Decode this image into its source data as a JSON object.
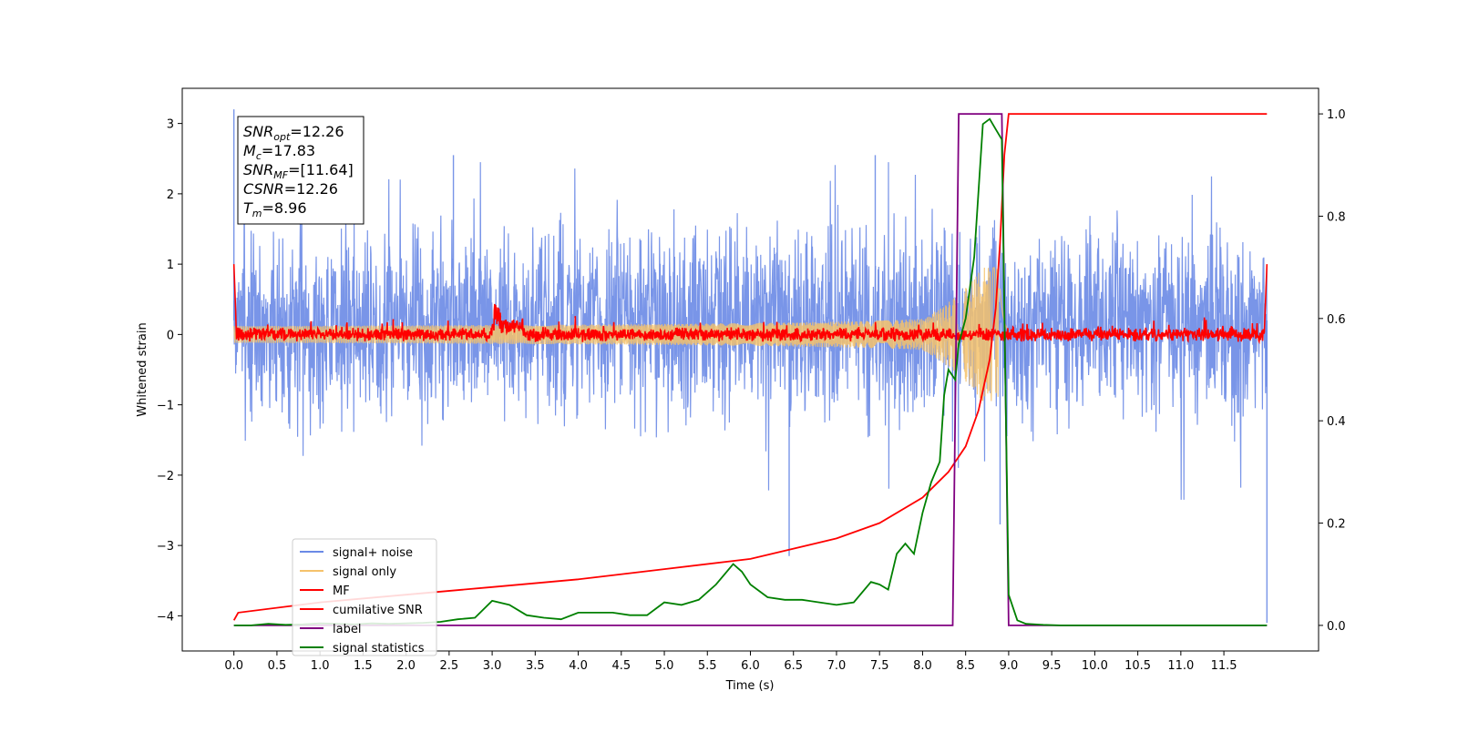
{
  "chart_data": {
    "type": "line",
    "title": "",
    "xlabel": "Time (s)",
    "ylabel": "Whitened strain",
    "y2label": "",
    "xlim": [
      -0.6,
      12.6
    ],
    "ylim": [
      -4.5,
      3.5
    ],
    "y2lim": [
      -0.05,
      1.05
    ],
    "xticks": [
      "0.0",
      "0.5",
      "1.0",
      "1.5",
      "2.0",
      "2.5",
      "3.0",
      "3.5",
      "4.0",
      "4.5",
      "5.0",
      "5.5",
      "6.0",
      "6.5",
      "7.0",
      "7.5",
      "8.0",
      "8.5",
      "9.0",
      "9.5",
      "10.0",
      "10.5",
      "11.0",
      "11.5"
    ],
    "yticks": [
      3,
      2,
      1,
      0,
      -1,
      -2,
      -3,
      -4
    ],
    "ytick_labels": [
      "3",
      "2",
      "1",
      "0",
      "−1",
      "−2",
      "−3",
      "−4"
    ],
    "y2ticks": [
      1.0,
      0.8,
      0.6,
      0.4,
      0.2,
      0.0
    ],
    "y2tick_labels": [
      "1.0",
      "0.8",
      "0.6",
      "0.4",
      "0.2",
      "0.0"
    ],
    "legend_position": "lower-left",
    "grid": false,
    "colors": {
      "signal_noise": "#6a8ae6",
      "signal_only": "#f5c26b",
      "mf": "#ff0000",
      "csnr": "#ff0000",
      "label": "#800080",
      "stats": "#008000"
    },
    "annotation": [
      {
        "main": "SNR",
        "sub": "opt",
        "value": "=12.26"
      },
      {
        "main": "M",
        "sub": "c",
        "value": "=17.83"
      },
      {
        "main": "SNR",
        "sub": "MF",
        "value": "=[11.64]"
      },
      {
        "main": "CSNR",
        "sub": "",
        "value": "=12.26"
      },
      {
        "main": "T",
        "sub": "m",
        "value": "=8.96"
      }
    ],
    "series": [
      {
        "name": "signal+ noise",
        "axis": "left",
        "style": "noise band",
        "x_range": [
          0.0,
          12.0
        ],
        "typical_range": [
          -1.3,
          1.6
        ],
        "notable_peaks": [
          [
            0.0,
            3.2
          ],
          [
            2.55,
            2.55
          ],
          [
            6.45,
            -3.15
          ],
          [
            7.45,
            2.55
          ],
          [
            8.9,
            -2.7
          ],
          [
            12.0,
            -4.1
          ]
        ]
      },
      {
        "name": "signal only",
        "axis": "left",
        "style": "chirp",
        "x_range": [
          0.0,
          9.0
        ],
        "peak_time": 8.9,
        "peak_amplitude": 0.95
      },
      {
        "name": "MF",
        "axis": "left",
        "style": "noisy line",
        "points": [
          [
            0.0,
            1.0
          ],
          [
            0.05,
            0.05
          ],
          [
            3.05,
            0.45
          ],
          [
            3.3,
            0.15
          ],
          [
            12.0,
            0.0
          ],
          [
            12.0,
            1.0
          ]
        ]
      },
      {
        "name": "cumilative SNR",
        "axis": "right",
        "x": [
          0.0,
          0.05,
          1.0,
          2.0,
          3.0,
          4.0,
          5.0,
          6.0,
          7.0,
          7.5,
          8.0,
          8.3,
          8.5,
          8.65,
          8.78,
          8.85,
          8.9,
          8.95,
          9.0,
          9.5,
          10.0,
          11.0,
          12.0
        ],
        "y": [
          0.01,
          0.025,
          0.045,
          0.06,
          0.075,
          0.09,
          0.11,
          0.13,
          0.17,
          0.2,
          0.25,
          0.3,
          0.35,
          0.42,
          0.52,
          0.62,
          0.75,
          0.92,
          1.0,
          1.0,
          1.0,
          1.0,
          1.0
        ]
      },
      {
        "name": "label",
        "axis": "right",
        "x": [
          0.0,
          8.35,
          8.42,
          8.92,
          9.0,
          12.0
        ],
        "y": [
          0.0,
          0.0,
          1.0,
          1.0,
          0.0,
          0.0
        ]
      },
      {
        "name": "signal statistics",
        "axis": "right",
        "x": [
          0.0,
          0.2,
          0.4,
          0.6,
          0.8,
          1.0,
          1.2,
          1.4,
          1.6,
          1.8,
          2.0,
          2.2,
          2.4,
          2.6,
          2.8,
          3.0,
          3.2,
          3.4,
          3.6,
          3.8,
          4.0,
          4.2,
          4.4,
          4.6,
          4.8,
          5.0,
          5.2,
          5.4,
          5.6,
          5.8,
          5.9,
          6.0,
          6.2,
          6.4,
          6.6,
          6.8,
          7.0,
          7.2,
          7.4,
          7.5,
          7.6,
          7.7,
          7.8,
          7.9,
          8.0,
          8.1,
          8.2,
          8.25,
          8.3,
          8.38,
          8.42,
          8.5,
          8.6,
          8.7,
          8.78,
          8.85,
          8.92,
          8.96,
          9.0,
          9.1,
          9.2,
          9.4,
          9.6,
          10.0,
          12.0
        ],
        "y": [
          0.0,
          0.0,
          0.003,
          0.001,
          0.002,
          0.004,
          0.003,
          0.002,
          0.004,
          0.003,
          0.004,
          0.005,
          0.007,
          0.012,
          0.015,
          0.048,
          0.04,
          0.02,
          0.015,
          0.012,
          0.025,
          0.025,
          0.025,
          0.02,
          0.02,
          0.045,
          0.04,
          0.05,
          0.08,
          0.12,
          0.105,
          0.08,
          0.055,
          0.05,
          0.05,
          0.045,
          0.04,
          0.045,
          0.085,
          0.08,
          0.07,
          0.14,
          0.16,
          0.14,
          0.22,
          0.28,
          0.32,
          0.45,
          0.5,
          0.48,
          0.55,
          0.6,
          0.72,
          0.98,
          0.99,
          0.97,
          0.95,
          0.5,
          0.06,
          0.01,
          0.003,
          0.001,
          0.0,
          0.0,
          0.0
        ]
      }
    ]
  }
}
